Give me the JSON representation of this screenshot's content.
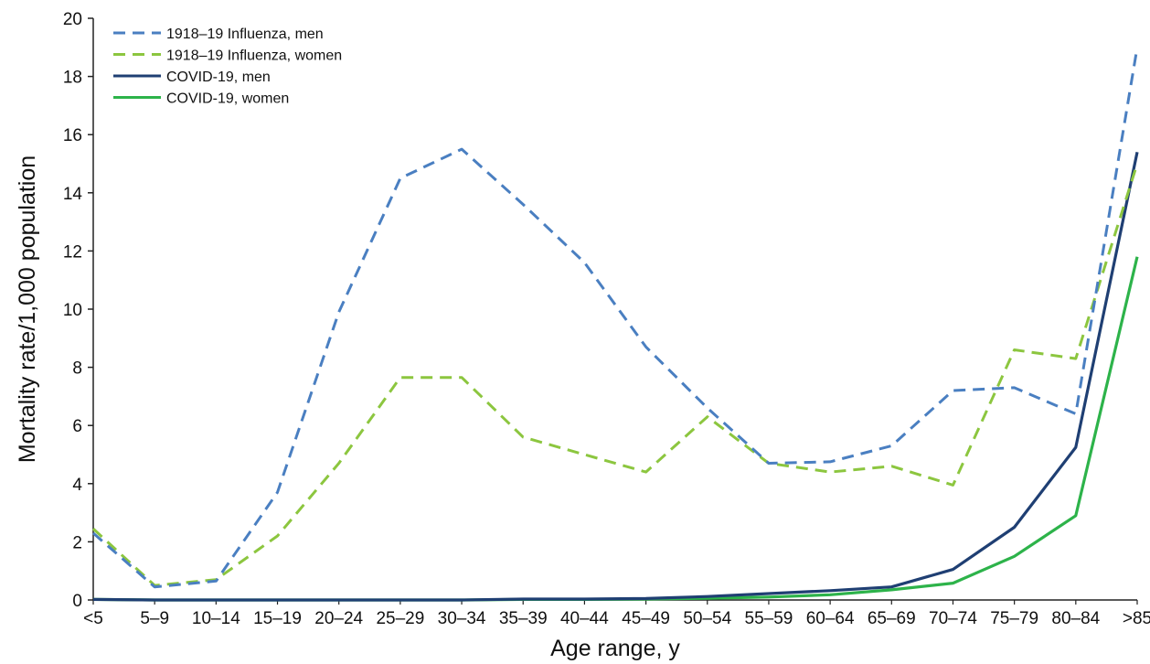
{
  "chart_data": {
    "type": "line",
    "title": "",
    "xlabel": "Age range, y",
    "ylabel": "Mortality rate/1,000 population",
    "ylim": [
      0,
      20
    ],
    "yticks": [
      "0",
      "2",
      "4",
      "6",
      "8",
      "10",
      "12",
      "14",
      "16",
      "18",
      "20"
    ],
    "grid": false,
    "legend_position": "top-left",
    "categories": [
      "<5",
      "5–9",
      "10–14",
      "15–19",
      "20–24",
      "25–29",
      "30–34",
      "35–39",
      "40–44",
      "45–49",
      "50–54",
      "55–59",
      "60–64",
      "65–69",
      "70–74",
      "75–79",
      "80–84",
      ">85"
    ],
    "series": [
      {
        "name": "1918–19 Influenza, men",
        "color": "#4A7FC1",
        "style": "dashed",
        "values": [
          2.3,
          0.45,
          0.65,
          3.7,
          9.9,
          14.5,
          15.5,
          13.6,
          11.6,
          8.7,
          6.6,
          4.7,
          4.75,
          5.3,
          7.2,
          7.3,
          6.4,
          19.0
        ]
      },
      {
        "name": "1918–19 Influenza, women",
        "color": "#8CC63F",
        "style": "dashed",
        "values": [
          2.45,
          0.5,
          0.7,
          2.2,
          4.7,
          7.65,
          7.65,
          5.6,
          5.0,
          4.4,
          6.3,
          4.7,
          4.4,
          4.6,
          3.95,
          8.6,
          8.3,
          15.0
        ]
      },
      {
        "name": "COVID-19, men",
        "color": "#1F3F73",
        "style": "solid",
        "values": [
          0.02,
          0.0,
          0.0,
          0.0,
          0.0,
          0.0,
          0.0,
          0.03,
          0.03,
          0.05,
          0.12,
          0.22,
          0.32,
          0.45,
          1.05,
          2.5,
          5.25,
          15.4
        ]
      },
      {
        "name": "COVID-19, women",
        "color": "#2DB34A",
        "style": "solid",
        "values": [
          0.02,
          0.0,
          0.0,
          0.0,
          0.0,
          0.0,
          0.0,
          0.02,
          0.02,
          0.03,
          0.06,
          0.1,
          0.18,
          0.35,
          0.58,
          1.5,
          2.9,
          11.8
        ]
      }
    ]
  }
}
